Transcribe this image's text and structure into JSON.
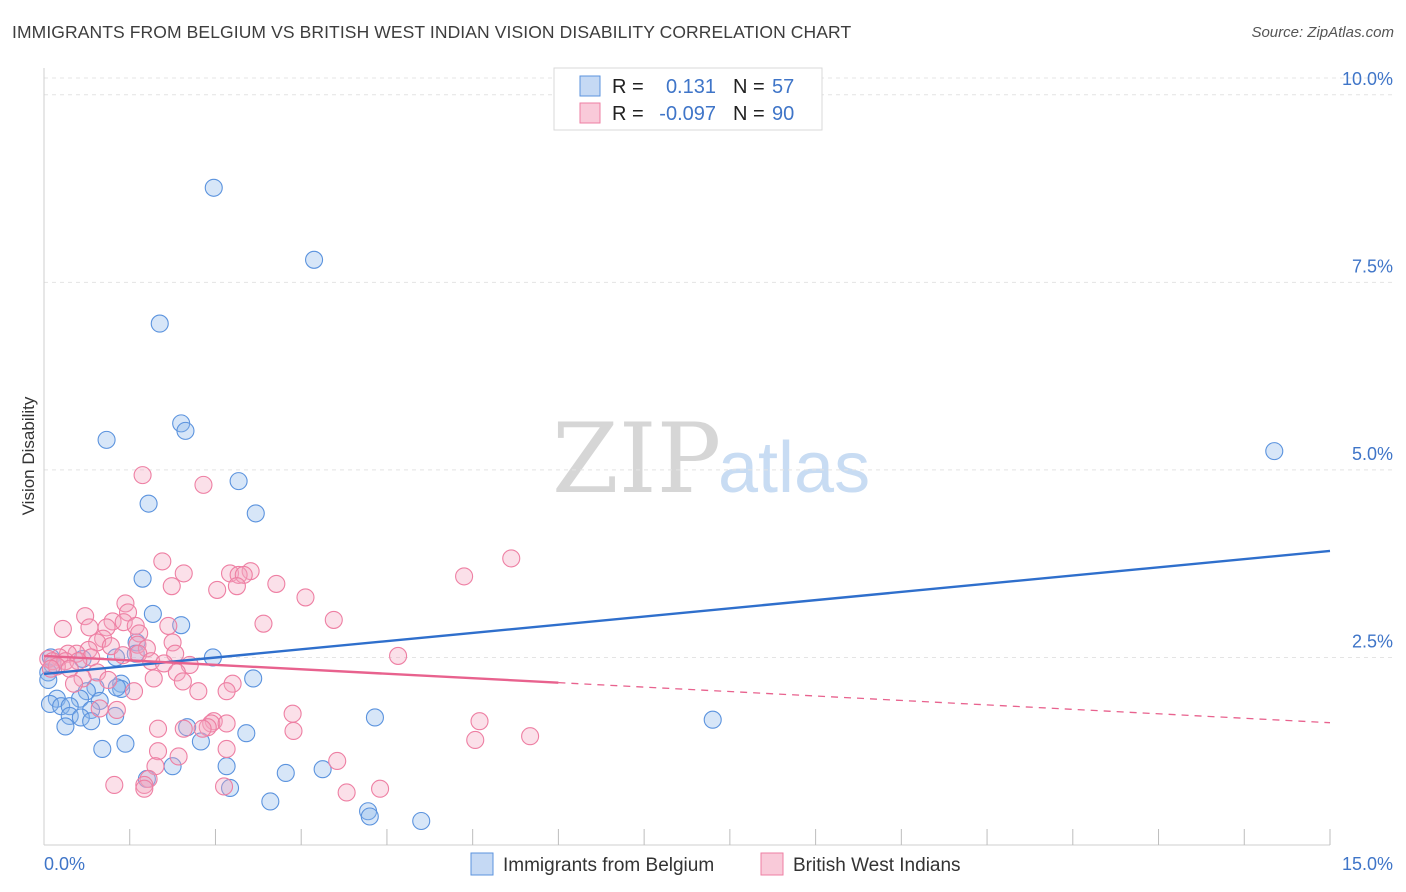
{
  "title": "IMMIGRANTS FROM BELGIUM VS BRITISH WEST INDIAN VISION DISABILITY CORRELATION CHART",
  "source": "Source: ZipAtlas.com",
  "watermark": {
    "zip": "ZIP",
    "atlas": "atlas"
  },
  "colors": {
    "blue": "#5b93de",
    "blue_line": "#2f6fcc",
    "pink": "#ee7fa3",
    "pink_line": "#e8628e",
    "accent_text": "#3f75c8"
  },
  "legend": {
    "rows": [
      {
        "r_label": "R =",
        "r_value": "0.131",
        "n_label": "N =",
        "n_value": "57"
      },
      {
        "r_label": "R =",
        "r_value": "-0.097",
        "n_label": "N =",
        "n_value": "90"
      }
    ]
  },
  "bottom_legend": [
    "Immigrants from Belgium",
    "British West Indians"
  ],
  "chart_data": {
    "type": "scatter",
    "title": "IMMIGRANTS FROM BELGIUM VS BRITISH WEST INDIAN VISION DISABILITY CORRELATION CHART",
    "xlabel": "",
    "ylabel": "Vision Disability",
    "xlim": [
      0,
      15
    ],
    "ylim": [
      0,
      10.25
    ],
    "x_tick_labels": [
      "0.0%",
      "15.0%"
    ],
    "y_ticks": [
      2.5,
      5.0,
      7.5,
      10.0
    ],
    "y_tick_labels": [
      "2.5%",
      "5.0%",
      "7.5%",
      "10.0%"
    ],
    "grid": true,
    "series": [
      {
        "name": "Immigrants from Belgium",
        "r": 0.131,
        "n": 57,
        "trend": {
          "x": [
            0,
            15
          ],
          "y": [
            2.28,
            3.92
          ],
          "dashed_from": null
        },
        "points": [
          [
            1.98,
            8.76
          ],
          [
            3.15,
            7.8
          ],
          [
            1.35,
            6.95
          ],
          [
            1.6,
            5.62
          ],
          [
            1.65,
            5.52
          ],
          [
            0.73,
            5.4
          ],
          [
            2.27,
            4.85
          ],
          [
            1.22,
            4.55
          ],
          [
            2.47,
            4.42
          ],
          [
            1.15,
            3.55
          ],
          [
            1.27,
            3.08
          ],
          [
            1.6,
            2.93
          ],
          [
            1.08,
            2.7
          ],
          [
            0.84,
            2.5
          ],
          [
            1.07,
            2.55
          ],
          [
            1.97,
            2.5
          ],
          [
            0.45,
            2.48
          ],
          [
            0.1,
            2.4
          ],
          [
            0.08,
            2.5
          ],
          [
            0.05,
            2.3
          ],
          [
            2.44,
            2.22
          ],
          [
            0.9,
            2.15
          ],
          [
            0.6,
            2.1
          ],
          [
            0.9,
            2.08
          ],
          [
            0.85,
            2.1
          ],
          [
            0.5,
            2.05
          ],
          [
            0.15,
            1.95
          ],
          [
            0.42,
            1.95
          ],
          [
            0.65,
            1.92
          ],
          [
            0.07,
            1.88
          ],
          [
            0.2,
            1.85
          ],
          [
            0.3,
            1.85
          ],
          [
            0.55,
            1.8
          ],
          [
            0.3,
            1.72
          ],
          [
            0.43,
            1.7
          ],
          [
            0.83,
            1.72
          ],
          [
            0.55,
            1.65
          ],
          [
            0.25,
            1.58
          ],
          [
            3.86,
            1.7
          ],
          [
            7.8,
            1.67
          ],
          [
            1.67,
            1.57
          ],
          [
            2.36,
            1.49
          ],
          [
            1.83,
            1.38
          ],
          [
            0.95,
            1.35
          ],
          [
            0.68,
            1.28
          ],
          [
            1.5,
            1.05
          ],
          [
            2.13,
            1.05
          ],
          [
            3.25,
            1.01
          ],
          [
            2.82,
            0.96
          ],
          [
            1.2,
            0.88
          ],
          [
            2.17,
            0.76
          ],
          [
            2.64,
            0.58
          ],
          [
            3.78,
            0.45
          ],
          [
            3.8,
            0.38
          ],
          [
            4.4,
            0.32
          ],
          [
            0.05,
            2.2
          ],
          [
            14.35,
            5.25
          ]
        ]
      },
      {
        "name": "British West Indians",
        "r": -0.097,
        "n": 90,
        "trend": {
          "x": [
            0,
            15
          ],
          "y": [
            2.52,
            1.63
          ],
          "dashed_from": 6.0
        },
        "points": [
          [
            1.15,
            4.93
          ],
          [
            1.86,
            4.8
          ],
          [
            5.45,
            3.82
          ],
          [
            1.38,
            3.78
          ],
          [
            2.41,
            3.65
          ],
          [
            1.63,
            3.62
          ],
          [
            2.17,
            3.62
          ],
          [
            2.27,
            3.6
          ],
          [
            4.9,
            3.58
          ],
          [
            2.33,
            3.6
          ],
          [
            2.71,
            3.48
          ],
          [
            1.49,
            3.45
          ],
          [
            2.02,
            3.4
          ],
          [
            2.25,
            3.45
          ],
          [
            3.05,
            3.3
          ],
          [
            0.95,
            3.22
          ],
          [
            0.98,
            3.1
          ],
          [
            0.48,
            3.05
          ],
          [
            0.8,
            2.98
          ],
          [
            3.38,
            3.0
          ],
          [
            0.93,
            2.97
          ],
          [
            2.56,
            2.95
          ],
          [
            1.07,
            2.92
          ],
          [
            1.45,
            2.92
          ],
          [
            0.53,
            2.9
          ],
          [
            0.22,
            2.88
          ],
          [
            0.73,
            2.9
          ],
          [
            1.11,
            2.82
          ],
          [
            0.69,
            2.75
          ],
          [
            0.62,
            2.7
          ],
          [
            1.5,
            2.7
          ],
          [
            1.09,
            2.67
          ],
          [
            0.78,
            2.65
          ],
          [
            1.2,
            2.62
          ],
          [
            0.52,
            2.6
          ],
          [
            1.1,
            2.55
          ],
          [
            1.53,
            2.55
          ],
          [
            0.38,
            2.55
          ],
          [
            0.92,
            2.53
          ],
          [
            0.28,
            2.55
          ],
          [
            0.18,
            2.5
          ],
          [
            0.55,
            2.5
          ],
          [
            0.05,
            2.48
          ],
          [
            0.1,
            2.45
          ],
          [
            0.25,
            2.45
          ],
          [
            0.4,
            2.45
          ],
          [
            1.25,
            2.45
          ],
          [
            1.4,
            2.42
          ],
          [
            1.7,
            2.4
          ],
          [
            0.15,
            2.38
          ],
          [
            0.3,
            2.35
          ],
          [
            0.08,
            2.35
          ],
          [
            0.62,
            2.3
          ],
          [
            1.55,
            2.3
          ],
          [
            4.13,
            2.52
          ],
          [
            0.45,
            2.22
          ],
          [
            0.75,
            2.2
          ],
          [
            1.28,
            2.22
          ],
          [
            0.35,
            2.15
          ],
          [
            1.62,
            2.18
          ],
          [
            2.2,
            2.15
          ],
          [
            1.8,
            2.05
          ],
          [
            1.05,
            2.05
          ],
          [
            2.13,
            2.05
          ],
          [
            0.65,
            1.82
          ],
          [
            0.85,
            1.8
          ],
          [
            2.9,
            1.75
          ],
          [
            1.98,
            1.65
          ],
          [
            1.95,
            1.62
          ],
          [
            2.13,
            1.62
          ],
          [
            5.08,
            1.65
          ],
          [
            1.33,
            1.55
          ],
          [
            1.63,
            1.55
          ],
          [
            1.91,
            1.57
          ],
          [
            1.85,
            1.55
          ],
          [
            2.91,
            1.52
          ],
          [
            5.67,
            1.45
          ],
          [
            5.03,
            1.4
          ],
          [
            2.13,
            1.28
          ],
          [
            1.33,
            1.25
          ],
          [
            3.42,
            1.12
          ],
          [
            1.57,
            1.18
          ],
          [
            1.3,
            1.05
          ],
          [
            1.22,
            0.88
          ],
          [
            1.17,
            0.8
          ],
          [
            3.92,
            0.75
          ],
          [
            3.53,
            0.7
          ],
          [
            1.17,
            0.75
          ],
          [
            2.1,
            0.78
          ],
          [
            0.82,
            0.8
          ]
        ]
      }
    ]
  }
}
